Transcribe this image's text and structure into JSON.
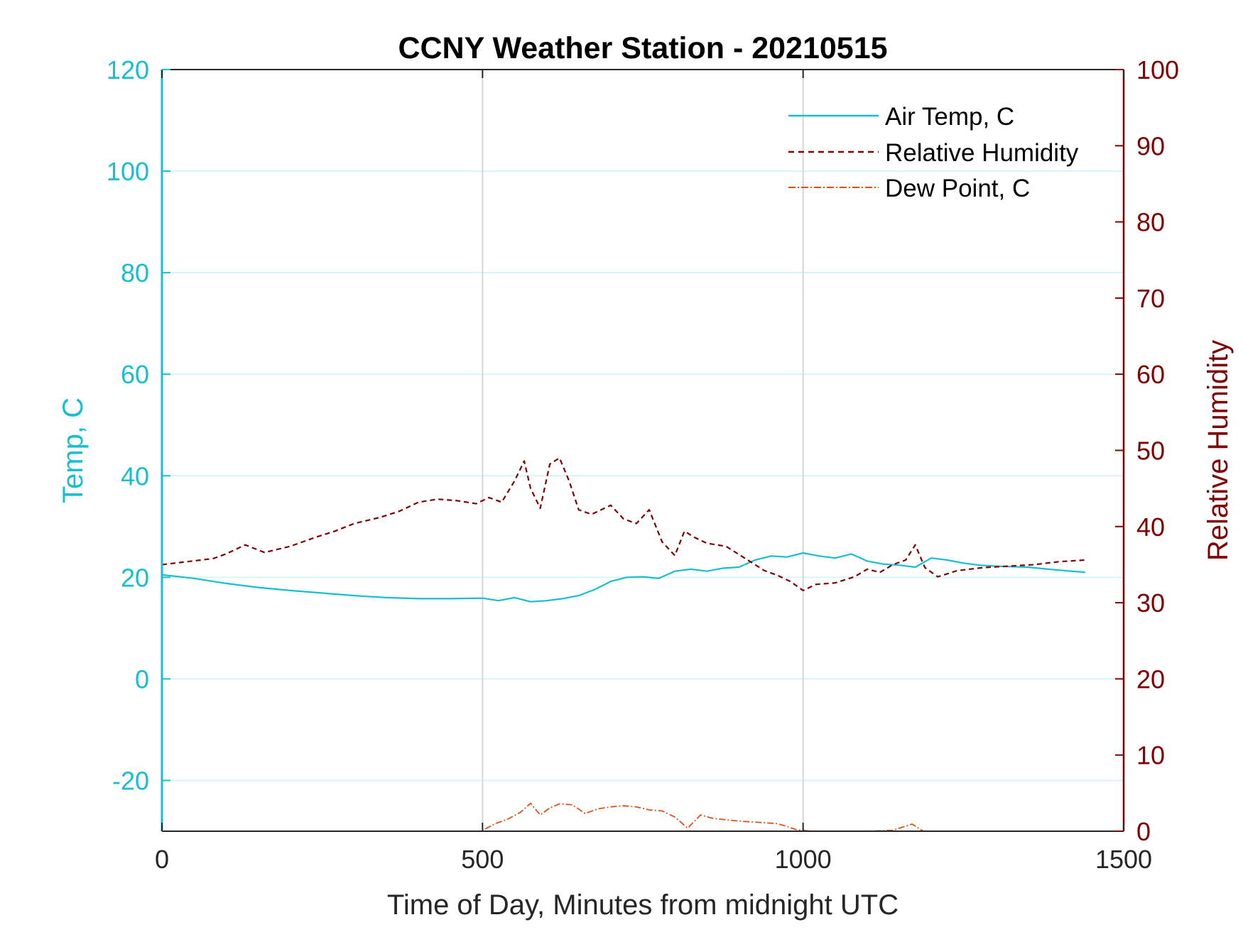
{
  "chart_data": {
    "type": "line",
    "title": "CCNY Weather Station - 20210515",
    "xlabel": "Time of Day, Minutes from midnight UTC",
    "ylabel_left": "Temp, C",
    "ylabel_right": "Relative Humidity",
    "xlim": [
      0,
      1500
    ],
    "ylim_left": [
      -30,
      120
    ],
    "ylim_right": [
      0,
      100
    ],
    "x_ticks": [
      0,
      500,
      1000,
      1500
    ],
    "y_ticks_left": [
      -20,
      0,
      20,
      40,
      60,
      80,
      100,
      120
    ],
    "y_ticks_right": [
      0,
      10,
      20,
      30,
      40,
      50,
      60,
      70,
      80,
      90,
      100
    ],
    "grid": true,
    "legend_position": "top-right",
    "colors": {
      "temp": "#17becf",
      "humidity": "#7f0000",
      "dewpoint": "#d95319",
      "left_axis": "#17becf",
      "right_axis": "#7f0000",
      "grid_h": "#d7f3f8",
      "grid_v": "#d0d6dc"
    },
    "series": [
      {
        "name": "Air Temp, C",
        "axis": "left",
        "style": "solid",
        "x": [
          0,
          50,
          100,
          150,
          200,
          250,
          300,
          350,
          400,
          450,
          500,
          525,
          550,
          575,
          600,
          625,
          650,
          675,
          700,
          725,
          750,
          775,
          800,
          825,
          850,
          875,
          900,
          925,
          950,
          975,
          1000,
          1025,
          1050,
          1075,
          1100,
          1125,
          1150,
          1175,
          1200,
          1225,
          1250,
          1275,
          1300,
          1350,
          1400,
          1440
        ],
        "y": [
          20.5,
          19.8,
          18.8,
          18.0,
          17.4,
          16.9,
          16.4,
          16.0,
          15.8,
          15.8,
          15.9,
          15.4,
          16.0,
          15.2,
          15.4,
          15.8,
          16.4,
          17.6,
          19.2,
          20.0,
          20.1,
          19.8,
          21.2,
          21.6,
          21.2,
          21.8,
          22.0,
          23.4,
          24.2,
          24.0,
          24.8,
          24.2,
          23.8,
          24.6,
          23.2,
          22.6,
          22.4,
          22.0,
          23.8,
          23.4,
          22.8,
          22.4,
          22.2,
          22.0,
          21.4,
          21.0
        ]
      },
      {
        "name": "Relative Humidity",
        "axis": "right",
        "style": "dashed",
        "x": [
          0,
          40,
          80,
          100,
          130,
          160,
          200,
          240,
          270,
          300,
          340,
          370,
          400,
          430,
          460,
          490,
          510,
          530,
          550,
          565,
          575,
          590,
          605,
          620,
          635,
          650,
          670,
          700,
          720,
          740,
          760,
          780,
          800,
          815,
          830,
          850,
          880,
          910,
          940,
          960,
          980,
          1000,
          1020,
          1050,
          1080,
          1100,
          1120,
          1140,
          1160,
          1175,
          1190,
          1210,
          1240,
          1280,
          1320,
          1360,
          1400,
          1440
        ],
        "y": [
          35.0,
          35.4,
          35.8,
          36.4,
          37.6,
          36.6,
          37.4,
          38.6,
          39.4,
          40.4,
          41.2,
          42.0,
          43.2,
          43.6,
          43.4,
          43.0,
          43.8,
          43.2,
          46.0,
          48.6,
          45.0,
          42.4,
          48.2,
          49.0,
          46.0,
          42.2,
          41.6,
          42.8,
          41.0,
          40.4,
          42.2,
          38.0,
          36.2,
          39.4,
          38.6,
          37.8,
          37.4,
          35.8,
          34.2,
          33.6,
          32.8,
          31.6,
          32.4,
          32.6,
          33.4,
          34.4,
          34.0,
          35.0,
          35.6,
          37.6,
          34.6,
          33.4,
          34.2,
          34.6,
          34.8,
          35.0,
          35.4,
          35.6
        ]
      },
      {
        "name": "Dew Point, C",
        "axis": "left",
        "style": "dashdot",
        "x": [
          0,
          360,
          400,
          450,
          490,
          505,
          520,
          540,
          560,
          575,
          590,
          605,
          620,
          640,
          660,
          680,
          700,
          720,
          740,
          760,
          780,
          800,
          820,
          840,
          860,
          900,
          960,
          990,
          1050,
          1100,
          1140,
          1170,
          1190,
          1240,
          1290,
          1300,
          1440
        ],
        "y": [
          -31.5,
          -31.5,
          -30.3,
          -30.2,
          -30.8,
          -29.5,
          -28.5,
          -27.6,
          -26.2,
          -24.5,
          -26.8,
          -25.4,
          -24.6,
          -24.8,
          -26.5,
          -25.6,
          -25.2,
          -25.0,
          -25.2,
          -25.8,
          -26.0,
          -27.2,
          -29.4,
          -26.8,
          -27.5,
          -28.0,
          -28.5,
          -29.7,
          -30.5,
          -30.0,
          -29.8,
          -28.6,
          -30.2,
          -30.6,
          -30.3,
          -31.5,
          -31.5
        ]
      }
    ]
  }
}
